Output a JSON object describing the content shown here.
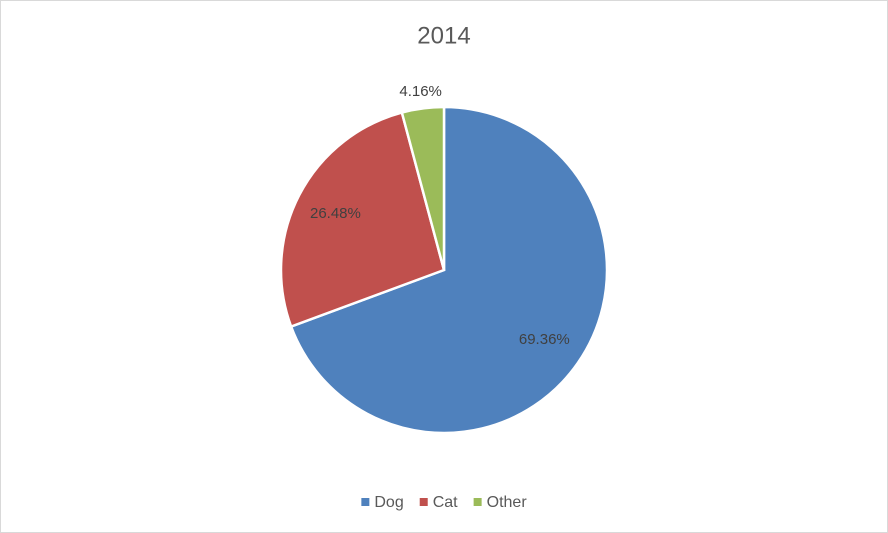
{
  "chart_data": {
    "type": "pie",
    "title": "2014",
    "categories": [
      "Dog",
      "Cat",
      "Other"
    ],
    "values": [
      69.36,
      26.48,
      4.16
    ],
    "value_labels": [
      "69.36%",
      "26.48%",
      "4.16%"
    ],
    "colors": [
      "#4f81bd",
      "#c0504d",
      "#9bbb59"
    ],
    "legend": "bottom"
  }
}
